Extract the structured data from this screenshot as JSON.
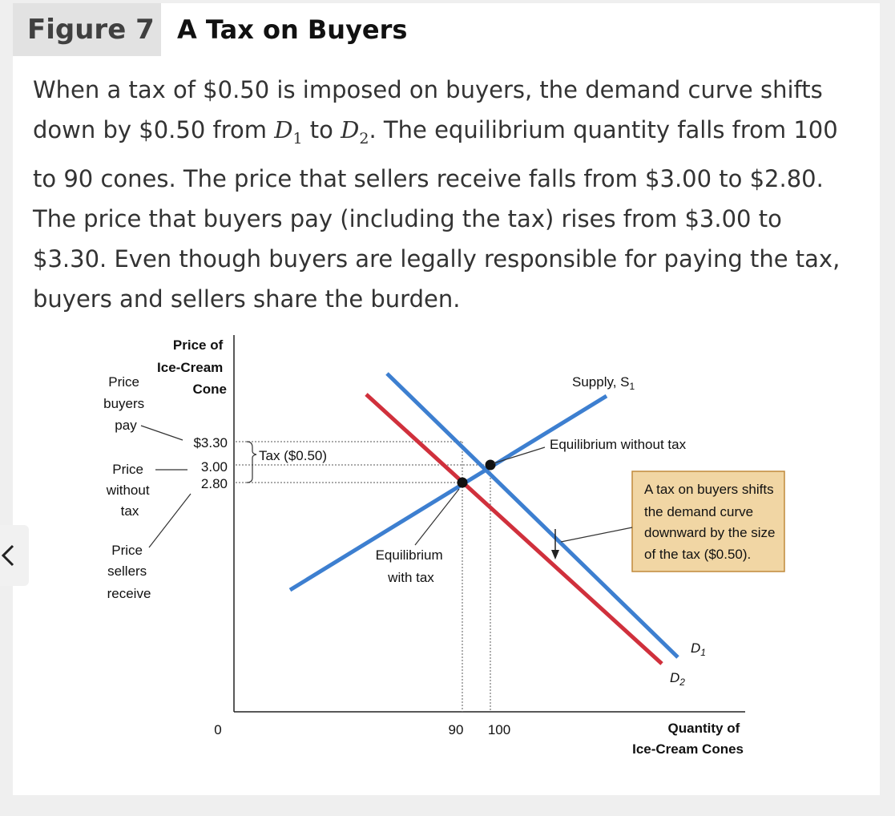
{
  "figure": {
    "number": "Figure 7",
    "title": "A Tax on Buyers",
    "caption_parts": {
      "p1": "When a tax of $0.50 is imposed on buyers, the demand curve shifts down by $0.50 from ",
      "d1": "D",
      "d1_sub": "1",
      "p2": " to ",
      "d2": "D",
      "d2_sub": "2",
      "p3": ". The equilibrium quantity falls from 100 to 90 cones. The price that sellers receive falls from $3.00 to $2.80. The price that buyers pay (including the tax) rises from $3.00 to $3.30. Even though buyers are legally responsible for paying the tax, buyers and sellers share the burden."
    }
  },
  "chart_data": {
    "type": "line",
    "y_axis": {
      "label_lines": [
        "Price of",
        "Ice-Cream",
        "Cone"
      ],
      "ticks": [
        {
          "value": 3.3,
          "label": "$3.30"
        },
        {
          "value": 3.0,
          "label": "3.00"
        },
        {
          "value": 2.8,
          "label": "2.80"
        }
      ]
    },
    "x_axis": {
      "label_lines": [
        "Quantity of",
        "Ice-Cream Cones"
      ],
      "ticks": [
        {
          "value": 0,
          "label": "0"
        },
        {
          "value": 90,
          "label": "90"
        },
        {
          "value": 100,
          "label": "100"
        }
      ]
    },
    "series": [
      {
        "name": "Supply, S",
        "name_sub": "1",
        "color": "#3d7fd0"
      },
      {
        "name": "D",
        "name_sub": "1",
        "color": "#3d7fd0"
      },
      {
        "name": "D",
        "name_sub": "2",
        "color": "#d0303c"
      }
    ],
    "equilibria": [
      {
        "quantity": 100,
        "price": 3.0,
        "label": "Equilibrium without tax"
      },
      {
        "quantity": 90,
        "price": 2.8,
        "label_lines": [
          "Equilibrium",
          "with tax"
        ]
      }
    ],
    "annotations": {
      "tax_brace": "Tax ($0.50)",
      "price_buyers_pay": [
        "Price",
        "buyers",
        "pay"
      ],
      "price_without_tax": [
        "Price",
        "without",
        "tax"
      ],
      "price_sellers_receive": [
        "Price",
        "sellers",
        "receive"
      ],
      "shift_note": [
        "A tax on buyers shifts",
        "the demand curve",
        "downward by the size",
        "of the tax ($0.50)."
      ]
    },
    "colors": {
      "demand_old": "#3d7fd0",
      "demand_new": "#d0303c",
      "note_box": "#f1d6a4",
      "note_border": "#c08a3c"
    }
  }
}
